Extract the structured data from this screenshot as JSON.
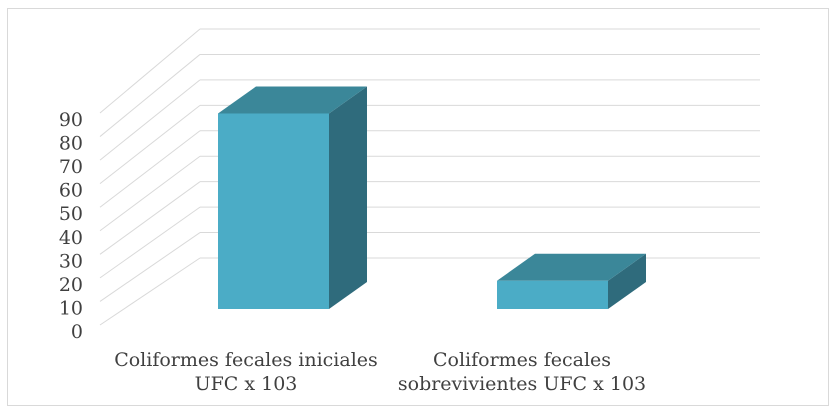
{
  "chart_data": {
    "type": "bar",
    "categories": [
      [
        "Coliformes fecales iniciales",
        "UFC x 103"
      ],
      [
        "Coliformes fecales",
        "sobrevivientes UFC x 103"
      ]
    ],
    "values": [
      83,
      12
    ],
    "yticks": [
      "0",
      "10",
      "20",
      "30",
      "40",
      "50",
      "60",
      "70",
      "80",
      "90"
    ],
    "ylim": [
      0,
      90
    ],
    "title": "",
    "xlabel": "",
    "ylabel": "",
    "grid": true,
    "style": "3d-column",
    "colors": {
      "front": "#4bacc6",
      "side": "#2f6b7c",
      "top": "#3b8799",
      "grid": "#d9d9d9",
      "text": "#404040"
    }
  }
}
